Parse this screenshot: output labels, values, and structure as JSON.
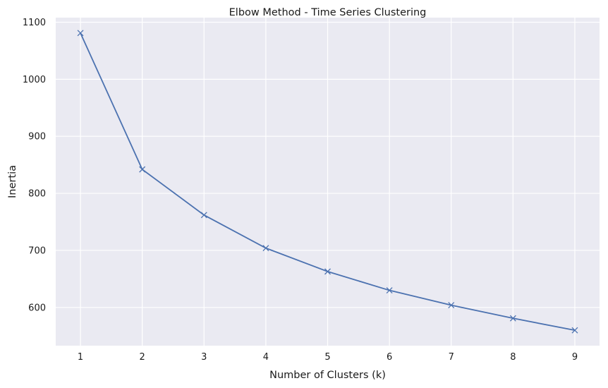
{
  "chart_data": {
    "type": "line",
    "title": "Elbow Method - Time Series Clustering",
    "xlabel": "Number of Clusters (k)",
    "ylabel": "Inertia",
    "x": [
      1,
      2,
      3,
      4,
      5,
      6,
      7,
      8,
      9
    ],
    "series": [
      {
        "values": [
          1081,
          842,
          762,
          704,
          663,
          630,
          604,
          581,
          560
        ],
        "color": "#4c72b0",
        "marker": "x"
      }
    ],
    "xticks": [
      1,
      2,
      3,
      4,
      5,
      6,
      7,
      8,
      9
    ],
    "yticks": [
      600,
      700,
      800,
      900,
      1000,
      1100
    ],
    "xlim": [
      0.6,
      9.4
    ],
    "ylim": [
      533,
      1108
    ],
    "grid": true,
    "background": "#eaeaf2"
  }
}
